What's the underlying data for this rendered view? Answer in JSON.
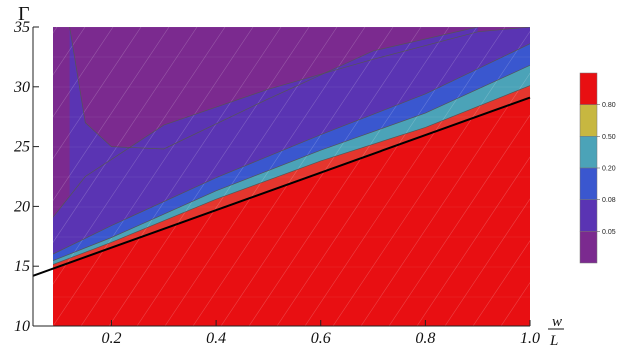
{
  "chart_data": {
    "type": "contour",
    "xlabel_num": "w",
    "xlabel_den": "L",
    "ylabel": "Γ",
    "xlim": [
      0.05,
      1.0
    ],
    "ylim": [
      10,
      35
    ],
    "x_ticks": [
      0.2,
      0.4,
      0.6,
      0.8,
      1.0
    ],
    "x_tick_labels": [
      "0.2",
      "0.4",
      "0.6",
      "0.8",
      "1.0"
    ],
    "y_ticks": [
      10,
      15,
      20,
      25,
      30,
      35
    ],
    "y_tick_labels": [
      "10",
      "15",
      "20",
      "25",
      "30",
      "35"
    ],
    "boundary_line": {
      "x": [
        0.05,
        1.0
      ],
      "y": [
        14.2,
        29.1
      ]
    },
    "contours": [
      {
        "level": 0.8,
        "color": "#e8282c",
        "x": [
          0.05,
          0.2,
          0.4,
          0.6,
          0.8,
          1.0
        ],
        "y": [
          14.5,
          17.0,
          20.6,
          23.8,
          26.6,
          30.1
        ]
      },
      {
        "level": 0.5,
        "color": "#c7b740",
        "x": [
          0.05,
          0.2,
          0.4,
          0.6,
          0.8,
          1.0
        ],
        "y": [
          14.8,
          17.4,
          21.3,
          24.7,
          27.8,
          31.8
        ]
      },
      {
        "level": 0.2,
        "color": "#4ba3b8",
        "x": [
          0.05,
          0.2,
          0.4,
          0.6,
          0.8,
          1.0
        ],
        "y": [
          15.2,
          18.4,
          22.4,
          26.0,
          29.4,
          33.6
        ]
      },
      {
        "level": 0.08,
        "color": "#3a57cf",
        "x": [
          0.05,
          0.15,
          0.3,
          0.5,
          0.7,
          0.9,
          1.0
        ],
        "y": [
          17.0,
          22.5,
          26.8,
          29.8,
          32.3,
          34.6,
          35.0
        ]
      },
      {
        "level": 0.05,
        "color": "#5a34b3",
        "x": [
          0.12,
          0.15,
          0.2,
          0.3,
          0.5,
          0.7,
          0.9
        ],
        "y": [
          35.0,
          27.0,
          25.0,
          24.8,
          29.0,
          33.0,
          35.0
        ]
      }
    ],
    "legend": {
      "levels": [
        "0.80",
        "0.50",
        "0.20",
        "0.08",
        "0.05"
      ],
      "colors": [
        "#e80f12",
        "#c7b740",
        "#4ba3b8",
        "#3a57cf",
        "#5a34b3",
        "#7b2a8f"
      ]
    },
    "grid": false
  }
}
